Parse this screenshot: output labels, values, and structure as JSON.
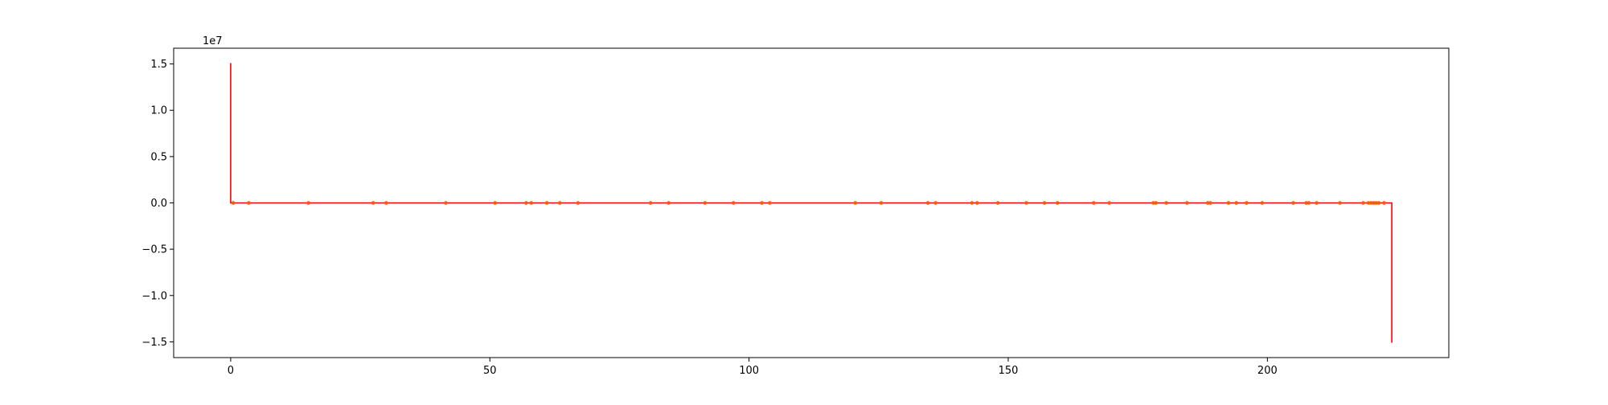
{
  "chart_data": {
    "type": "line",
    "title": "",
    "xlabel": "",
    "ylabel": "",
    "y_offset_label": "1e7",
    "xlim": [
      -11,
      235
    ],
    "ylim": [
      -16700000,
      16700000
    ],
    "x_ticks": [
      0,
      50,
      100,
      150,
      200
    ],
    "y_ticks": [
      15000000.0,
      10000000.0,
      5000000.0,
      0,
      -5000000.0,
      -10000000.0,
      -15000000.0
    ],
    "x_tick_labels": [
      "0",
      "50",
      "100",
      "150",
      "200"
    ],
    "y_tick_labels": [
      "1.5",
      "1.0",
      "0.5",
      "0.0",
      "−0.5",
      "−1.0",
      "−1.5"
    ],
    "grid": false,
    "series": [
      {
        "color": "#ff0000",
        "style": "step",
        "x": [
          0,
          0,
          224,
          224
        ],
        "y": [
          15100000,
          0,
          0,
          -15100000
        ]
      },
      {
        "color": "#ff5a00",
        "style": "markers",
        "marker_x": [
          0.5,
          3.5,
          15,
          27.5,
          30,
          41.5,
          51,
          57,
          58,
          61,
          63.5,
          67,
          81,
          84.5,
          91.5,
          97,
          102.5,
          104,
          120.5,
          125.5,
          134.5,
          136,
          143,
          144,
          148,
          153.5,
          157,
          159.5,
          166.5,
          169.5,
          178,
          178.5,
          180.5,
          184.5,
          188.5,
          189,
          192.5,
          194,
          196,
          199,
          205,
          207.5,
          208,
          209.5,
          214,
          218.5,
          219.5,
          220,
          220.5,
          221,
          221.5,
          222.5
        ],
        "marker_y": 0
      }
    ]
  }
}
